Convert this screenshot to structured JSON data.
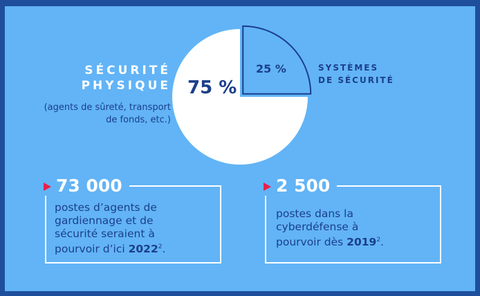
{
  "chart_data": {
    "type": "pie",
    "categories": [
      "SÉCURITÉ PHYSIQUE",
      "SYSTÈMES DE SÉCURITÉ"
    ],
    "values": [
      75,
      25
    ],
    "value_labels": [
      "75 %",
      "25 %"
    ],
    "colors": [
      "#ffffff",
      "#62b4f6"
    ],
    "annotation": "(agents de sûreté, transport de fonds, etc.)"
  },
  "stats": [
    {
      "number": "73 000",
      "text": "postes d’agents de gardiennage et de sécurité seraient à pourvoir d’ici ",
      "year": "2022",
      "note": "2",
      "end": "."
    },
    {
      "number": "2 500",
      "text": "postes dans la cyberdéfense à pourvoir dès ",
      "year": "2019",
      "note": "2",
      "end": "."
    }
  ]
}
